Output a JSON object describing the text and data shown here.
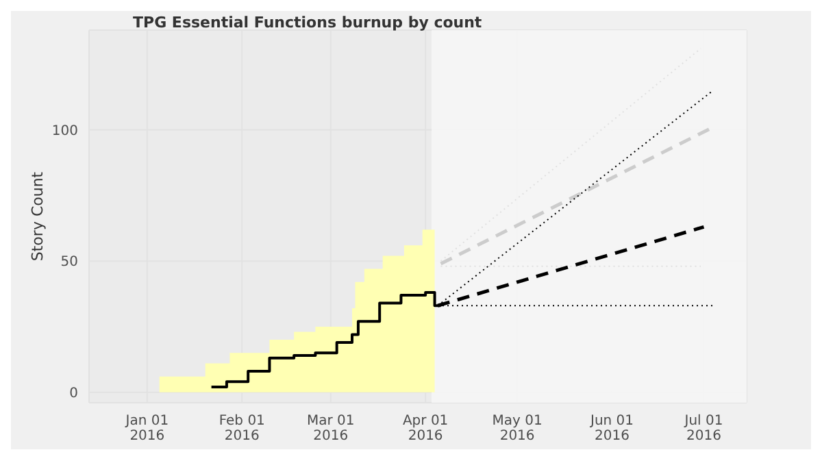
{
  "chart_data": {
    "type": "line",
    "title": "TPG Essential Functions burnup by count",
    "ylabel": "Story Count",
    "xlim": [
      "2015-12-13",
      "2016-07-15"
    ],
    "ylim": [
      -4,
      138
    ],
    "yticks": [
      0,
      50,
      100
    ],
    "xticks": [
      {
        "value": "2016-01-01",
        "label": "Jan 01\n2016"
      },
      {
        "value": "2016-02-01",
        "label": "Feb 01\n2016"
      },
      {
        "value": "2016-03-01",
        "label": "Mar 01\n2016"
      },
      {
        "value": "2016-04-01",
        "label": "Apr 01\n2016"
      },
      {
        "value": "2016-05-01",
        "label": "May 01\n2016"
      },
      {
        "value": "2016-06-01",
        "label": "Jun 01\n2016"
      },
      {
        "value": "2016-07-01",
        "label": "Jul 01\n2016"
      }
    ],
    "grid": true,
    "bands": [
      {
        "axis": "x",
        "from": "2016-04-03",
        "to": "2016-07-15",
        "color": "#f7f7f7"
      }
    ],
    "series": [
      {
        "type": "area",
        "color": "#ffffb3",
        "x": [
          "2016-01-05",
          "2016-01-20",
          "2016-01-28",
          "2016-02-10",
          "2016-02-18",
          "2016-02-25",
          "2016-03-08",
          "2016-03-09",
          "2016-03-12",
          "2016-03-18",
          "2016-03-25",
          "2016-03-31",
          "2016-04-04"
        ],
        "values": [
          6,
          11,
          15,
          20,
          23,
          25,
          32,
          42,
          47,
          52,
          56,
          62,
          62
        ]
      },
      {
        "type": "step",
        "color": "#000000",
        "line_style": "solid",
        "x": [
          "2016-01-22",
          "2016-01-27",
          "2016-02-03",
          "2016-02-10",
          "2016-02-18",
          "2016-02-25",
          "2016-03-03",
          "2016-03-08",
          "2016-03-10",
          "2016-03-17",
          "2016-03-24",
          "2016-04-01",
          "2016-04-04",
          "2016-04-06"
        ],
        "values": [
          2,
          4,
          8,
          13,
          14,
          15,
          19,
          22,
          27,
          34,
          37,
          38,
          33,
          33
        ]
      },
      {
        "color": "#cccccc",
        "line_style": "dashed",
        "x": [
          "2016-04-06",
          "2016-07-04"
        ],
        "values": [
          49,
          101
        ]
      },
      {
        "color": "#e0e0e0",
        "line_style": "dotted",
        "x": [
          "2016-04-06",
          "2016-06-30"
        ],
        "values": [
          50,
          131
        ]
      },
      {
        "color": "#e0e0e0",
        "line_style": "dotted",
        "x": [
          "2016-04-06",
          "2016-06-30"
        ],
        "values": [
          48,
          48
        ]
      },
      {
        "color": "#000000",
        "line_style": "dotted",
        "x": [
          "2016-04-05",
          "2016-07-04"
        ],
        "values": [
          33,
          115
        ]
      },
      {
        "color": "#000000",
        "line_style": "dotted",
        "x": [
          "2016-04-05",
          "2016-07-04"
        ],
        "values": [
          33,
          33
        ]
      },
      {
        "color": "#000000",
        "line_style": "dashed",
        "x": [
          "2016-04-05",
          "2016-07-01"
        ],
        "values": [
          33,
          63
        ]
      }
    ]
  }
}
